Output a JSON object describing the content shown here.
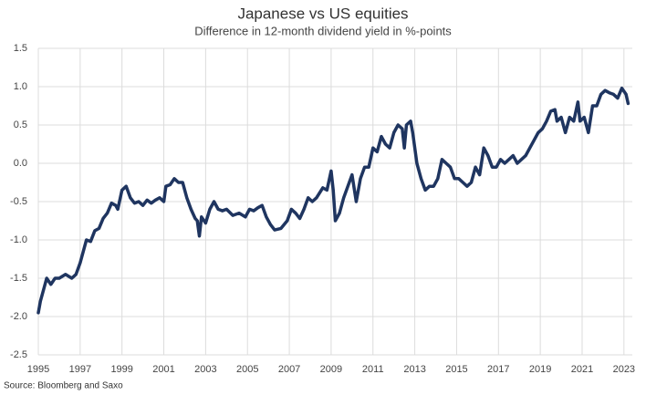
{
  "chart_data": {
    "type": "line",
    "title": "Japanese vs US equities",
    "subtitle": "Difference in 12-month dividend yield in %-points",
    "source": "Source: Bloomberg and Saxo",
    "color": "#1f3560",
    "grid": true,
    "xlim": [
      1995,
      2023.4
    ],
    "ylim": [
      -2.5,
      1.5
    ],
    "xticks": [
      1995,
      1997,
      1999,
      2001,
      2003,
      2005,
      2007,
      2009,
      2011,
      2013,
      2015,
      2017,
      2019,
      2021,
      2023
    ],
    "yticks": [
      -2.5,
      {
        "value": -2.0,
        "label": "-2.0"
      },
      -1.5,
      {
        "value": -1.0,
        "label": "-1.0"
      },
      -0.5,
      {
        "value": 0.0,
        "label": "0.0"
      },
      0.5,
      {
        "value": 1.0,
        "label": "1.0"
      },
      1.5
    ],
    "x": [
      1995.0,
      1995.1,
      1995.3,
      1995.4,
      1995.6,
      1995.8,
      1996.0,
      1996.3,
      1996.6,
      1996.8,
      1997.0,
      1997.1,
      1997.3,
      1997.5,
      1997.7,
      1997.9,
      1998.1,
      1998.3,
      1998.5,
      1998.7,
      1998.8,
      1999.0,
      1999.2,
      1999.4,
      1999.6,
      1999.8,
      2000.0,
      2000.2,
      2000.4,
      2000.6,
      2000.8,
      2001.0,
      2001.1,
      2001.3,
      2001.5,
      2001.7,
      2001.9,
      2002.1,
      2002.3,
      2002.5,
      2002.6,
      2002.7,
      2002.8,
      2003.0,
      2003.2,
      2003.4,
      2003.6,
      2003.8,
      2004.0,
      2004.3,
      2004.6,
      2004.9,
      2005.1,
      2005.3,
      2005.5,
      2005.7,
      2005.9,
      2006.1,
      2006.3,
      2006.6,
      2006.9,
      2007.1,
      2007.3,
      2007.5,
      2007.7,
      2007.9,
      2008.1,
      2008.3,
      2008.6,
      2008.8,
      2009.0,
      2009.1,
      2009.2,
      2009.4,
      2009.6,
      2009.8,
      2010.0,
      2010.2,
      2010.4,
      2010.6,
      2010.8,
      2011.0,
      2011.2,
      2011.4,
      2011.6,
      2011.8,
      2012.0,
      2012.2,
      2012.4,
      2012.5,
      2012.6,
      2012.8,
      2012.9,
      2013.1,
      2013.3,
      2013.5,
      2013.7,
      2013.9,
      2014.1,
      2014.3,
      2014.5,
      2014.7,
      2014.9,
      2015.1,
      2015.3,
      2015.5,
      2015.7,
      2015.9,
      2016.1,
      2016.3,
      2016.5,
      2016.7,
      2016.9,
      2017.1,
      2017.3,
      2017.5,
      2017.7,
      2017.9,
      2018.1,
      2018.3,
      2018.5,
      2018.7,
      2018.9,
      2019.1,
      2019.3,
      2019.5,
      2019.7,
      2019.8,
      2020.0,
      2020.2,
      2020.4,
      2020.6,
      2020.8,
      2020.9,
      2021.1,
      2021.3,
      2021.5,
      2021.7,
      2021.9,
      2022.1,
      2022.3,
      2022.5,
      2022.7,
      2022.9,
      2023.1,
      2023.2
    ],
    "values": [
      -1.95,
      -1.8,
      -1.6,
      -1.5,
      -1.58,
      -1.5,
      -1.5,
      -1.45,
      -1.5,
      -1.45,
      -1.3,
      -1.2,
      -1.0,
      -1.02,
      -0.88,
      -0.85,
      -0.72,
      -0.65,
      -0.52,
      -0.55,
      -0.6,
      -0.35,
      -0.3,
      -0.45,
      -0.52,
      -0.5,
      -0.55,
      -0.48,
      -0.52,
      -0.48,
      -0.45,
      -0.5,
      -0.3,
      -0.28,
      -0.2,
      -0.25,
      -0.25,
      -0.45,
      -0.6,
      -0.72,
      -0.75,
      -0.95,
      -0.7,
      -0.78,
      -0.6,
      -0.5,
      -0.6,
      -0.62,
      -0.6,
      -0.68,
      -0.65,
      -0.7,
      -0.6,
      -0.62,
      -0.58,
      -0.55,
      -0.7,
      -0.8,
      -0.87,
      -0.85,
      -0.75,
      -0.6,
      -0.65,
      -0.72,
      -0.6,
      -0.45,
      -0.5,
      -0.45,
      -0.32,
      -0.35,
      -0.1,
      -0.35,
      -0.75,
      -0.65,
      -0.45,
      -0.3,
      -0.15,
      -0.5,
      -0.2,
      -0.05,
      -0.05,
      0.2,
      0.15,
      0.35,
      0.25,
      0.2,
      0.4,
      0.5,
      0.45,
      0.2,
      0.5,
      0.55,
      0.4,
      0.0,
      -0.2,
      -0.35,
      -0.3,
      -0.3,
      -0.2,
      0.05,
      0.0,
      -0.05,
      -0.2,
      -0.2,
      -0.25,
      -0.3,
      -0.25,
      -0.05,
      -0.15,
      0.2,
      0.1,
      -0.05,
      -0.05,
      0.05,
      0.0,
      0.05,
      0.1,
      0.0,
      0.05,
      0.1,
      0.2,
      0.3,
      0.4,
      0.45,
      0.55,
      0.68,
      0.7,
      0.55,
      0.6,
      0.4,
      0.6,
      0.55,
      0.8,
      0.55,
      0.6,
      0.4,
      0.75,
      0.75,
      0.9,
      0.95,
      0.92,
      0.9,
      0.85,
      0.98,
      0.9,
      0.78
    ]
  }
}
